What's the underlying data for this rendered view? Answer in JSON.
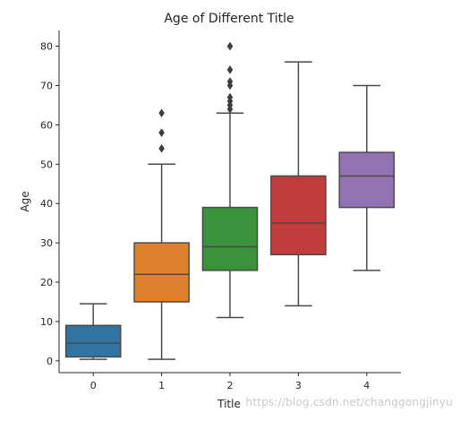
{
  "chart_data": {
    "type": "box",
    "title": "Age of Different Title",
    "xlabel": "Title",
    "ylabel": "Age",
    "categories": [
      "0",
      "1",
      "2",
      "3",
      "4"
    ],
    "ylim": [
      -3,
      84
    ],
    "yticks": [
      0,
      10,
      20,
      30,
      40,
      50,
      60,
      70,
      80
    ],
    "grid": false,
    "colors": [
      "#3274a1",
      "#e1812c",
      "#3a923a",
      "#c03d3e",
      "#9372b2"
    ],
    "boxes": [
      {
        "category": "0",
        "whisker_low": 0.4,
        "q1": 1.0,
        "median": 4.5,
        "q3": 9.0,
        "whisker_high": 14.5,
        "outliers": []
      },
      {
        "category": "1",
        "whisker_low": 0.4,
        "q1": 15.0,
        "median": 22.0,
        "q3": 30.0,
        "whisker_high": 50.0,
        "outliers": [
          54.0,
          58.0,
          63.0
        ]
      },
      {
        "category": "2",
        "whisker_low": 11.0,
        "q1": 23.0,
        "median": 29.0,
        "q3": 39.0,
        "whisker_high": 63.0,
        "outliers": [
          64.0,
          65.0,
          66.0,
          67.0,
          70.0,
          71.0,
          74.0,
          80.0
        ]
      },
      {
        "category": "3",
        "whisker_low": 14.0,
        "q1": 27.0,
        "median": 35.0,
        "q3": 47.0,
        "whisker_high": 76.0,
        "outliers": []
      },
      {
        "category": "4",
        "whisker_low": 23.0,
        "q1": 39.0,
        "median": 47.0,
        "q3": 53.0,
        "whisker_high": 70.0,
        "outliers": []
      }
    ]
  },
  "watermark": "https://blog.csdn.net/changgongjinyu"
}
